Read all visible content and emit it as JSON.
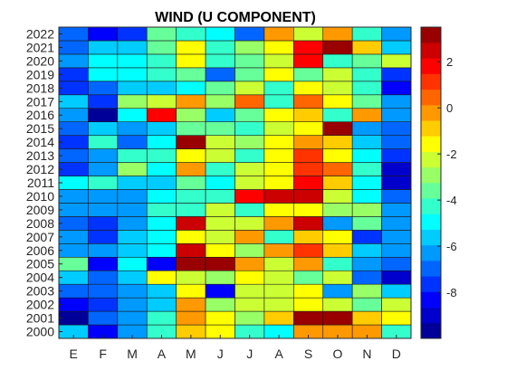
{
  "chart_data": {
    "type": "heatmap",
    "title": "WIND (U COMPONENT)",
    "x_categories": [
      "E",
      "F",
      "M",
      "A",
      "M",
      "J",
      "J",
      "A",
      "S",
      "O",
      "N",
      "D"
    ],
    "y_categories": [
      "2000",
      "2001",
      "2002",
      "2003",
      "2004",
      "2005",
      "2006",
      "2007",
      "2008",
      "2009",
      "2010",
      "2011",
      "2012",
      "2013",
      "2014",
      "2015",
      "2016",
      "2017",
      "2018",
      "2019",
      "2020",
      "2021",
      "2022"
    ],
    "values": [
      [
        -5.5,
        -8.0,
        -6.5,
        -4.5,
        -1.0,
        -1.5,
        -4.5,
        -5.0,
        -0.5,
        0.0,
        -0.5,
        -4.5
      ],
      [
        -9.5,
        -7.0,
        -6.5,
        -4.5,
        -0.5,
        -1.5,
        -3.0,
        -1.0,
        3.0,
        3.0,
        -1.0,
        -1.5
      ],
      [
        -8.5,
        -7.5,
        -6.5,
        -5.5,
        -0.5,
        -3.0,
        -2.5,
        -2.0,
        -1.5,
        -2.5,
        -3.5,
        -2.5
      ],
      [
        -7.0,
        -7.0,
        -6.5,
        -5.5,
        -1.5,
        -8.0,
        -2.5,
        -2.0,
        -1.5,
        -6.0,
        -3.0,
        -5.5
      ],
      [
        -5.5,
        -7.0,
        -5.5,
        -1.5,
        -2.5,
        -3.0,
        -1.5,
        -2.5,
        -3.5,
        -2.5,
        -7.0,
        -9.0
      ],
      [
        -3.5,
        -8.0,
        -5.0,
        -8.0,
        3.0,
        3.0,
        -0.5,
        -2.5,
        0.0,
        -4.0,
        -6.5,
        -7.0
      ],
      [
        -6.0,
        -6.5,
        -5.5,
        -5.0,
        2.5,
        -1.5,
        -3.0,
        -0.5,
        1.0,
        -1.0,
        -5.5,
        -6.5
      ],
      [
        -6.5,
        -7.5,
        -5.5,
        -5.0,
        -1.5,
        -2.5,
        -0.5,
        -4.0,
        -1.0,
        -1.5,
        -7.5,
        -6.5
      ],
      [
        -7.0,
        -7.5,
        -6.5,
        -5.0,
        2.5,
        -2.0,
        -2.5,
        0.0,
        2.5,
        -6.5,
        -3.5,
        -6.0
      ],
      [
        -6.5,
        -6.5,
        -6.5,
        -4.0,
        -4.5,
        -2.0,
        -4.0,
        -1.5,
        -1.5,
        -3.0,
        -3.0,
        -6.5
      ],
      [
        -6.0,
        -6.5,
        -6.5,
        -5.0,
        -4.5,
        -4.0,
        2.0,
        2.5,
        2.5,
        -2.0,
        -5.0,
        -7.0
      ],
      [
        -5.0,
        -4.5,
        -5.5,
        -5.5,
        -3.5,
        -5.0,
        -2.5,
        -1.5,
        1.5,
        -1.0,
        -5.0,
        -9.0
      ],
      [
        -7.5,
        -6.5,
        -3.0,
        -5.0,
        -0.5,
        -4.5,
        -2.0,
        -1.5,
        1.0,
        0.5,
        -4.5,
        -9.0
      ],
      [
        -7.0,
        -6.0,
        -4.0,
        -4.5,
        -1.5,
        -2.5,
        -4.0,
        -1.5,
        1.0,
        -1.5,
        -5.0,
        -7.5
      ],
      [
        -7.5,
        -4.0,
        -7.0,
        -5.0,
        3.0,
        -2.5,
        -3.0,
        -1.5,
        -0.5,
        -1.0,
        -5.5,
        -7.0
      ],
      [
        -7.0,
        -5.5,
        -6.5,
        -5.5,
        -3.5,
        -3.5,
        -4.0,
        -2.0,
        -1.5,
        3.0,
        -6.0,
        -7.0
      ],
      [
        -6.5,
        -9.5,
        -5.0,
        1.5,
        -3.0,
        -5.5,
        -3.5,
        -1.5,
        -1.0,
        -4.0,
        -0.5,
        -6.5
      ],
      [
        -5.5,
        -7.5,
        -3.0,
        -2.0,
        -0.5,
        -3.0,
        0.5,
        -4.0,
        0.5,
        -1.5,
        -3.5,
        -6.5
      ],
      [
        -7.5,
        -7.0,
        -5.5,
        -5.5,
        -5.0,
        -3.5,
        -2.0,
        -4.0,
        -1.5,
        -2.0,
        -4.5,
        -8.5
      ],
      [
        -7.5,
        -5.0,
        -5.0,
        -4.5,
        -3.5,
        -7.0,
        -3.5,
        -1.5,
        -3.5,
        -2.0,
        -4.0,
        -7.5
      ],
      [
        -6.5,
        -5.0,
        -5.0,
        -4.0,
        -1.5,
        -4.0,
        -3.5,
        -2.5,
        1.5,
        -4.5,
        -3.5,
        -2.5
      ],
      [
        -7.0,
        -5.5,
        -5.5,
        -3.5,
        -1.5,
        -4.5,
        -3.0,
        -1.5,
        1.5,
        3.5,
        -1.0,
        -5.5
      ],
      [
        -7.0,
        -8.5,
        -7.5,
        -3.5,
        -4.0,
        -5.0,
        -7.0,
        -0.5,
        -2.5,
        -0.5,
        -4.0,
        -6.0
      ]
    ],
    "colorbar": {
      "min": -10,
      "max": 3.5,
      "ticks": [
        -8,
        -6,
        -4,
        -2,
        0,
        2
      ],
      "levels": 20,
      "colormap": "jet"
    }
  }
}
